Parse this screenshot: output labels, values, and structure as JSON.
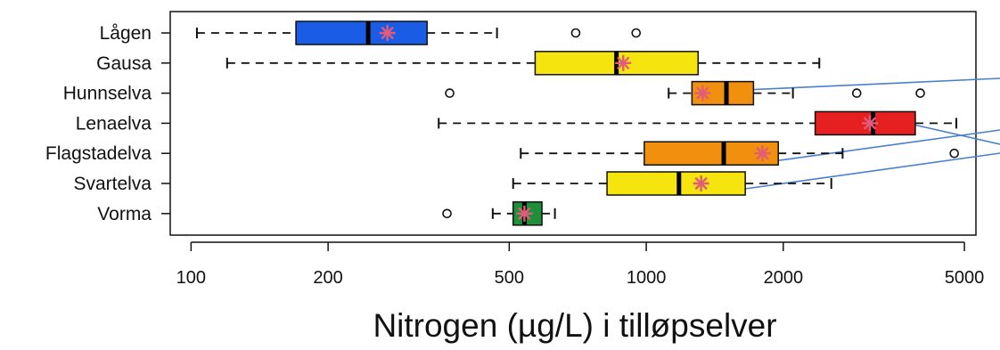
{
  "chart_data": {
    "type": "boxplot",
    "orientation": "horizontal",
    "title": "Nitrogen (µg/L) i tilløpselver",
    "xscale": "log",
    "xlim": [
      90,
      5300
    ],
    "xticks": [
      100,
      200,
      500,
      1000,
      2000,
      5000
    ],
    "xtick_labels": [
      "100",
      "200",
      "500",
      "1000",
      "2000",
      "5000"
    ],
    "categories": [
      "Lågen",
      "Gausa",
      "Hunnselva",
      "Lenaelva",
      "Flagstadelva",
      "Svartelva",
      "Vorma"
    ],
    "boxes": [
      {
        "name": "Lågen",
        "whisker_low": 103,
        "q1": 170,
        "median": 245,
        "q3": 330,
        "whisker_high": 470,
        "mean": 270,
        "outliers": [
          700,
          950
        ],
        "color": "#1a5ce6"
      },
      {
        "name": "Gausa",
        "whisker_low": 120,
        "q1": 570,
        "median": 860,
        "q3": 1300,
        "whisker_high": 2400,
        "mean": 890,
        "outliers": [],
        "color": "#f5e40e"
      },
      {
        "name": "Hunnselva",
        "whisker_low": 1120,
        "q1": 1260,
        "median": 1500,
        "q3": 1720,
        "whisker_high": 2100,
        "mean": 1330,
        "outliers": [
          370,
          2900,
          4000
        ],
        "color": "#f0900e"
      },
      {
        "name": "Lenaelva",
        "whisker_low": 350,
        "q1": 2350,
        "median": 3150,
        "q3": 3900,
        "whisker_high": 4800,
        "mean": 3100,
        "outliers": [],
        "color": "#e62020"
      },
      {
        "name": "Flagstadelva",
        "whisker_low": 530,
        "q1": 990,
        "median": 1480,
        "q3": 1950,
        "whisker_high": 2700,
        "mean": 1800,
        "outliers": [
          4750
        ],
        "color": "#f0900e"
      },
      {
        "name": "Svartelva",
        "whisker_low": 510,
        "q1": 820,
        "median": 1180,
        "q3": 1650,
        "whisker_high": 2550,
        "mean": 1320,
        "outliers": [],
        "color": "#f5e40e"
      },
      {
        "name": "Vorma",
        "whisker_low": 460,
        "q1": 510,
        "median": 540,
        "q3": 590,
        "whisker_high": 630,
        "mean": 540,
        "outliers": [
          365
        ],
        "color": "#1f8f3a"
      }
    ],
    "mean_marker_color": "#e25c7a",
    "connector_line_color": "#4a7fd0",
    "grid": false,
    "legend": "none"
  }
}
